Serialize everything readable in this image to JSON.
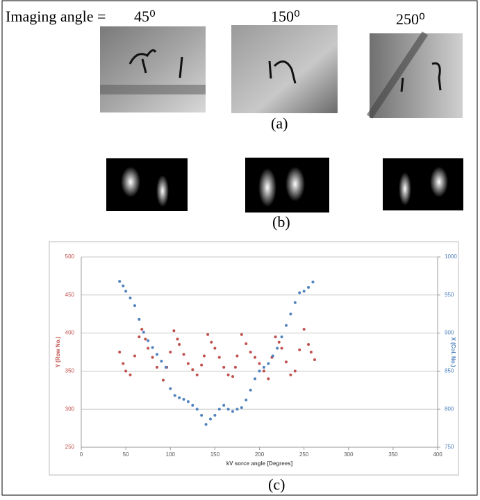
{
  "figure": {
    "angle_label": "Imaging angle =",
    "angles": [
      "45⁰",
      "150⁰",
      "250⁰"
    ],
    "panel_labels": [
      "(a)",
      "(b)",
      "(c)"
    ]
  },
  "chart_data": {
    "type": "scatter",
    "xlabel": "kV sorce angle [Degrees]",
    "ylabel": "Y (Row No.)",
    "y2label": "X (Col. No.)",
    "xlim": [
      0,
      400
    ],
    "xticks": [
      0,
      50,
      100,
      150,
      200,
      250,
      300,
      350,
      400
    ],
    "ylim": [
      250,
      500
    ],
    "yticks": [
      250,
      300,
      350,
      400,
      450,
      500
    ],
    "y2lim": [
      750,
      1000
    ],
    "y2ticks": [
      750,
      800,
      850,
      900,
      950,
      1000
    ],
    "grid": true,
    "series": [
      {
        "name": "Y (Row No.)",
        "color": "#c0504d",
        "x": [
          43,
          47,
          50,
          55,
          60,
          65,
          68,
          72,
          75,
          80,
          85,
          92,
          96,
          100,
          104,
          108,
          110,
          115,
          120,
          125,
          130,
          135,
          138,
          142,
          146,
          150,
          155,
          160,
          165,
          170,
          173,
          175,
          180,
          185,
          190,
          195,
          200,
          205,
          210,
          214,
          218,
          222,
          225,
          230,
          235,
          240,
          245,
          250,
          255,
          258,
          262
        ],
        "values": [
          375,
          360,
          350,
          345,
          370,
          395,
          405,
          392,
          380,
          368,
          355,
          338,
          355,
          375,
          403,
          392,
          385,
          372,
          360,
          352,
          345,
          358,
          370,
          398,
          388,
          380,
          368,
          355,
          345,
          343,
          355,
          370,
          398,
          386,
          375,
          368,
          360,
          350,
          340,
          368,
          395,
          388,
          380,
          362,
          345,
          350,
          378,
          405,
          385,
          375,
          365
        ]
      },
      {
        "name": "X (Col. No.)",
        "color": "#4f81bd",
        "axis": "y2",
        "x": [
          43,
          47,
          50,
          55,
          60,
          65,
          70,
          75,
          80,
          85,
          90,
          95,
          100,
          105,
          110,
          115,
          120,
          125,
          130,
          135,
          140,
          145,
          150,
          155,
          160,
          165,
          170,
          175,
          180,
          185,
          190,
          195,
          200,
          205,
          210,
          215,
          220,
          225,
          230,
          235,
          240,
          245,
          250,
          255,
          260
        ],
        "values": [
          968,
          962,
          955,
          946,
          936,
          918,
          901,
          890,
          881,
          872,
          863,
          855,
          827,
          818,
          815,
          813,
          810,
          805,
          800,
          792,
          780,
          787,
          792,
          800,
          805,
          800,
          797,
          800,
          802,
          812,
          825,
          840,
          850,
          855,
          860,
          870,
          880,
          895,
          910,
          925,
          940,
          953,
          955,
          960,
          967
        ]
      }
    ]
  }
}
